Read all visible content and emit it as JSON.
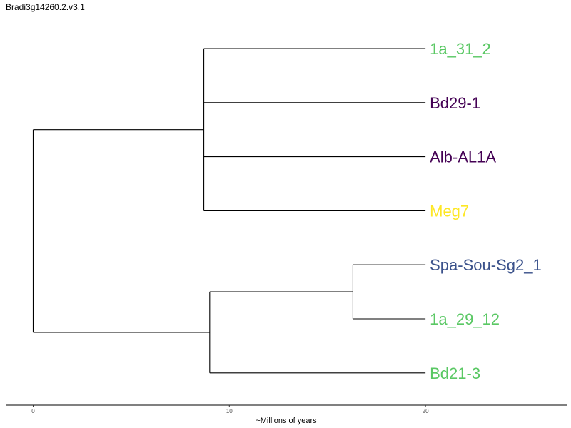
{
  "title": "Bradi3g14260.2.v3.1",
  "colors": {
    "green": "#5ac864",
    "purple": "#440154",
    "yellow": "#fde725",
    "blue": "#3b528b",
    "line": "#000000"
  },
  "chart_data": {
    "type": "dendrogram",
    "xlabel": "~Millions of years",
    "xticks": [
      0,
      10,
      20
    ],
    "xlim": [
      -1.4,
      27.2
    ],
    "tips": [
      {
        "name": "1a_31_2",
        "color": "#5ac864",
        "x": 20
      },
      {
        "name": "Bd29-1",
        "color": "#440154",
        "x": 20
      },
      {
        "name": "Alb-AL1A",
        "color": "#440154",
        "x": 20
      },
      {
        "name": "Meg7",
        "color": "#fde725",
        "x": 20
      },
      {
        "name": "Spa-Sou-Sg2_1",
        "color": "#3b528b",
        "x": 20
      },
      {
        "name": "1a_29_12",
        "color": "#5ac864",
        "x": 20
      },
      {
        "name": "Bd21-3",
        "color": "#5ac864",
        "x": 20
      }
    ],
    "internal_nodes": [
      {
        "id": "root",
        "x": 0,
        "children": [
          "n_top",
          "n_bottom"
        ]
      },
      {
        "id": "n_top",
        "x": 8.7,
        "children": [
          "1a_31_2",
          "Bd29-1",
          "Alb-AL1A",
          "Meg7"
        ]
      },
      {
        "id": "n_bottom",
        "x": 9.0,
        "children": [
          "n_spa",
          "Bd21-3"
        ]
      },
      {
        "id": "n_spa",
        "x": 16.3,
        "children": [
          "Spa-Sou-Sg2_1",
          "1a_29_12"
        ]
      }
    ]
  }
}
